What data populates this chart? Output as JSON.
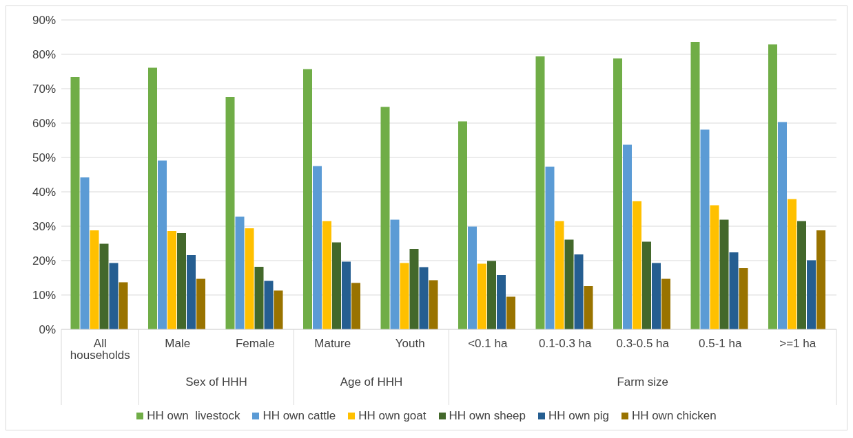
{
  "chart_data": {
    "type": "bar",
    "categories": [
      "All households",
      "Male",
      "Female",
      "Mature",
      "Youth",
      "<0.1 ha",
      "0.1-0.3 ha",
      "0.3-0.5 ha",
      "0.5-1 ha",
      ">=1 ha"
    ],
    "series": [
      {
        "name": "HH own  livestock",
        "color": "#70ad47",
        "values": [
          73.4,
          76.1,
          67.6,
          75.7,
          64.7,
          60.5,
          79.4,
          78.8,
          83.6,
          82.9
        ]
      },
      {
        "name": "HH own cattle",
        "color": "#5b9bd5",
        "values": [
          44.2,
          49.1,
          32.8,
          47.5,
          31.9,
          29.9,
          47.3,
          53.7,
          58.1,
          60.3
        ]
      },
      {
        "name": "HH own goat",
        "color": "#ffc000",
        "values": [
          28.8,
          28.6,
          29.4,
          31.5,
          19.3,
          19.1,
          31.5,
          37.3,
          36.1,
          37.9
        ]
      },
      {
        "name": "HH own sheep",
        "color": "#43682b",
        "values": [
          24.9,
          28.0,
          18.2,
          25.3,
          23.4,
          19.9,
          26.1,
          25.5,
          31.9,
          31.5
        ]
      },
      {
        "name": "HH own pig",
        "color": "#255e91",
        "values": [
          19.3,
          21.6,
          14.1,
          19.7,
          18.1,
          15.8,
          21.8,
          19.3,
          22.4,
          20.1
        ]
      },
      {
        "name": "HH own chicken",
        "color": "#997300",
        "values": [
          13.7,
          14.7,
          11.3,
          13.5,
          14.3,
          9.5,
          12.6,
          14.7,
          17.8,
          28.8
        ]
      }
    ],
    "annotations": [
      "Sex of HHH",
      "Age of HHH",
      "Farm size"
    ],
    "ylim": [
      0,
      90
    ],
    "yticks": [
      {
        "value": 0,
        "label": "0%"
      },
      {
        "value": 10,
        "label": "10%"
      },
      {
        "value": 20,
        "label": "20%"
      },
      {
        "value": 30,
        "label": "30%"
      },
      {
        "value": 40,
        "label": "40%"
      },
      {
        "value": 50,
        "label": "50%"
      },
      {
        "value": 60,
        "label": "60%"
      },
      {
        "value": 70,
        "label": "70%"
      },
      {
        "value": 80,
        "label": "80%"
      },
      {
        "value": 90,
        "label": "90%"
      }
    ],
    "grid": "y",
    "legend": "bottom"
  }
}
